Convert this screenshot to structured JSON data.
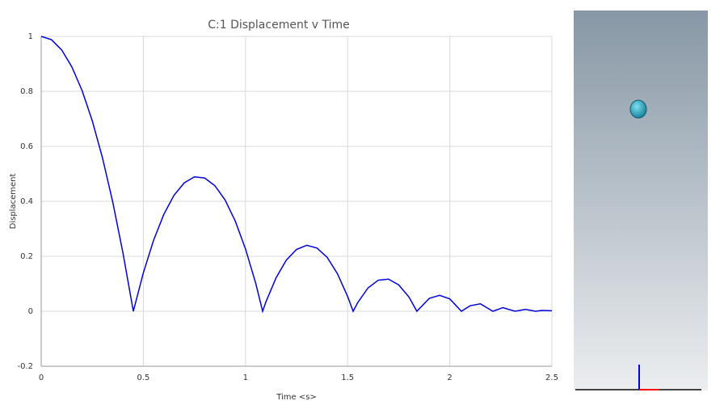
{
  "chart_data": {
    "type": "line",
    "title": "C:1 Displacement v Time",
    "x_label": "Time <s>",
    "y_label": "Displacement",
    "x": [
      0,
      0.05,
      0.1,
      0.15,
      0.2,
      0.25,
      0.3,
      0.35,
      0.4,
      0.451,
      0.5,
      0.55,
      0.6,
      0.65,
      0.7,
      0.75,
      0.8,
      0.85,
      0.9,
      0.95,
      1.0,
      1.05,
      1.084,
      1.1,
      1.15,
      1.2,
      1.25,
      1.3,
      1.35,
      1.4,
      1.45,
      1.5,
      1.527,
      1.55,
      1.6,
      1.65,
      1.7,
      1.75,
      1.8,
      1.839,
      1.9,
      1.95,
      2.0,
      2.057,
      2.1,
      2.15,
      2.211,
      2.26,
      2.32,
      2.37,
      2.42,
      2.45,
      2.5
    ],
    "series": [
      {
        "name": "Displacement",
        "color": "#0000dd",
        "values": [
          1,
          0.988,
          0.951,
          0.889,
          0.803,
          0.693,
          0.558,
          0.398,
          0.213,
          0,
          0.14,
          0.258,
          0.352,
          0.422,
          0.467,
          0.489,
          0.485,
          0.457,
          0.405,
          0.328,
          0.227,
          0.102,
          0,
          0.034,
          0.122,
          0.186,
          0.225,
          0.24,
          0.23,
          0.196,
          0.137,
          0.054,
          0,
          0.032,
          0.085,
          0.113,
          0.117,
          0.096,
          0.052,
          0,
          0.047,
          0.058,
          0.045,
          0,
          0.02,
          0.027,
          0,
          0.013,
          0,
          0.007,
          0,
          0.003,
          0.002
        ]
      }
    ],
    "xlim": [
      0,
      2.5
    ],
    "xticks": [
      0,
      0.5,
      1,
      1.5,
      2,
      2.5
    ],
    "ylim": [
      -0.2,
      1
    ],
    "yticks": [
      -0.2,
      0,
      0.2,
      0.4,
      0.6,
      0.8,
      1
    ],
    "grid": true
  }
}
